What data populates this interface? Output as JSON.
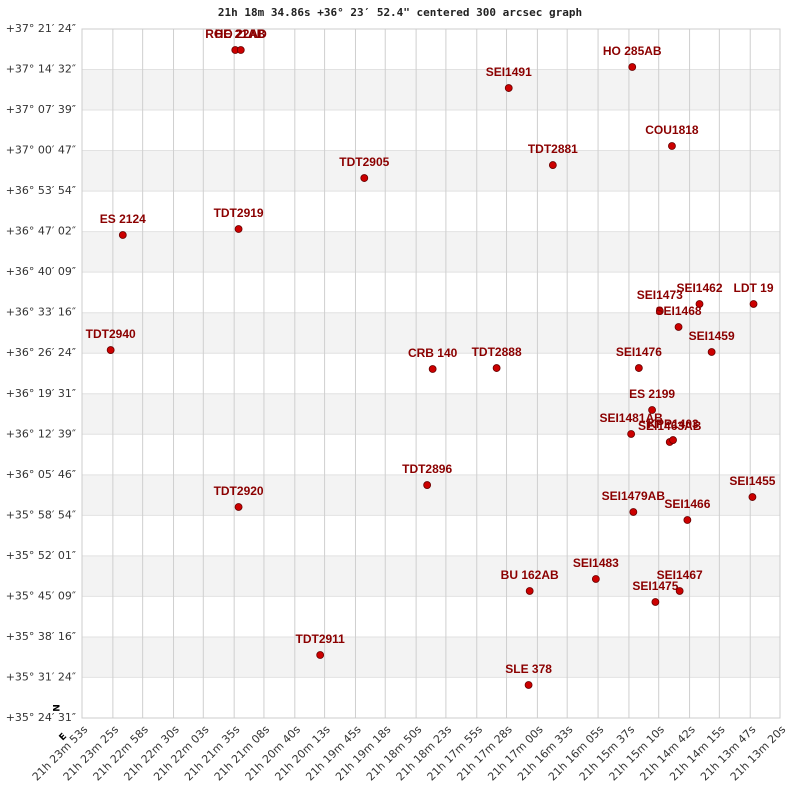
{
  "chart_data": {
    "type": "scatter",
    "title": "21h 18m 34.86s +36° 23′ 52.4\" centered 300 arcsec graph",
    "compass": [
      "N",
      "E"
    ],
    "labels": [
      "ROE 21AB",
      "HO 22AD",
      "HO  285AB",
      "SEI1491",
      "COU1818",
      "TDT2881",
      "TDT2905",
      "ES 2124",
      "TDT2919",
      "SEI1462",
      "LDT  19",
      "SEI1473",
      "SEI1468",
      "TDT2940",
      "SEI1459",
      "CRB 140",
      "TDT2888",
      "SEI1476",
      "ES 2199",
      "SEI1481AB",
      "SEI1463AB",
      "KPP1403",
      "TDT2896",
      "TDT2920",
      "SEI1479AB",
      "SEI1466",
      "SEI1455",
      "SEI1483",
      "BU  162AB",
      "SEI1475",
      "SEI1467",
      "TDT2911",
      "SLE 378"
    ],
    "x": [
      76894,
      76889,
      76534,
      76646,
      76498,
      76606,
      76777,
      76996,
      76891,
      76473,
      76424,
      76509,
      76492,
      77007,
      76462,
      76715,
      76657,
      76528,
      76516,
      76535,
      76500,
      76497,
      76720,
      76891,
      76533,
      76484,
      76425,
      76567,
      76627,
      76513,
      76491,
      76817,
      76628
    ],
    "y": [
      134270,
      134270,
      134097,
      133883,
      133293,
      133099,
      132967,
      132387,
      132448,
      131685,
      131685,
      131613,
      131451,
      131216,
      131196,
      131023,
      131033,
      131033,
      130606,
      130362,
      130280,
      130300,
      129842,
      129619,
      129568,
      129486,
      129720,
      128886,
      128764,
      128652,
      128764,
      128112,
      127807
    ],
    "color": "#cc0000",
    "xlim": [
      77033,
      76400
    ],
    "ylim": [
      127471,
      134484
    ],
    "xticks": [
      {
        "value": 77033,
        "label": "21h 23m 53s"
      },
      {
        "value": 77005,
        "label": "21h 23m 25s"
      },
      {
        "value": 76978,
        "label": "21h 22m 58s"
      },
      {
        "value": 76950,
        "label": "21h 22m 30s"
      },
      {
        "value": 76923,
        "label": "21h 22m 03s"
      },
      {
        "value": 76895,
        "label": "21h 21m 35s"
      },
      {
        "value": 76868,
        "label": "21h 21m 08s"
      },
      {
        "value": 76840,
        "label": "21h 20m 40s"
      },
      {
        "value": 76813,
        "label": "21h 20m 13s"
      },
      {
        "value": 76785,
        "label": "21h 19m 45s"
      },
      {
        "value": 76758,
        "label": "21h 19m 18s"
      },
      {
        "value": 76730,
        "label": "21h 18m 50s"
      },
      {
        "value": 76703,
        "label": "21h 18m 23s"
      },
      {
        "value": 76675,
        "label": "21h 17m 55s"
      },
      {
        "value": 76648,
        "label": "21h 17m 28s"
      },
      {
        "value": 76620,
        "label": "21h 17m 00s"
      },
      {
        "value": 76593,
        "label": "21h 16m 33s"
      },
      {
        "value": 76565,
        "label": "21h 16m 05s"
      },
      {
        "value": 76537,
        "label": "21h 15m 37s"
      },
      {
        "value": 76510,
        "label": "21h 15m 10s"
      },
      {
        "value": 76482,
        "label": "21h 14m 42s"
      },
      {
        "value": 76455,
        "label": "21h 14m 15s"
      },
      {
        "value": 76427,
        "label": "21h 13m 47s"
      },
      {
        "value": 76400,
        "label": "21h 13m 20s"
      }
    ],
    "yticks": [
      {
        "value": 127471,
        "label": "+35° 24′ 31″"
      },
      {
        "value": 127884,
        "label": "+35° 31′ 24″"
      },
      {
        "value": 128296,
        "label": "+35° 38′ 16″"
      },
      {
        "value": 128709,
        "label": "+35° 45′ 09″"
      },
      {
        "value": 129121,
        "label": "+35° 52′ 01″"
      },
      {
        "value": 129534,
        "label": "+35° 58′ 54″"
      },
      {
        "value": 129946,
        "label": "+36° 05′ 46″"
      },
      {
        "value": 130359,
        "label": "+36° 12′ 39″"
      },
      {
        "value": 130771,
        "label": "+36° 19′ 31″"
      },
      {
        "value": 131184,
        "label": "+36° 26′ 24″"
      },
      {
        "value": 131596,
        "label": "+36° 33′ 16″"
      },
      {
        "value": 132009,
        "label": "+36° 40′ 09″"
      },
      {
        "value": 132422,
        "label": "+36° 47′ 02″"
      },
      {
        "value": 132834,
        "label": "+36° 53′ 54″"
      },
      {
        "value": 133247,
        "label": "+37° 00′ 47″"
      },
      {
        "value": 133659,
        "label": "+37° 07′ 39″"
      },
      {
        "value": 134072,
        "label": "+37° 14′ 32″"
      },
      {
        "value": 134484,
        "label": "+37° 21′ 24″"
      }
    ],
    "grid": true
  }
}
